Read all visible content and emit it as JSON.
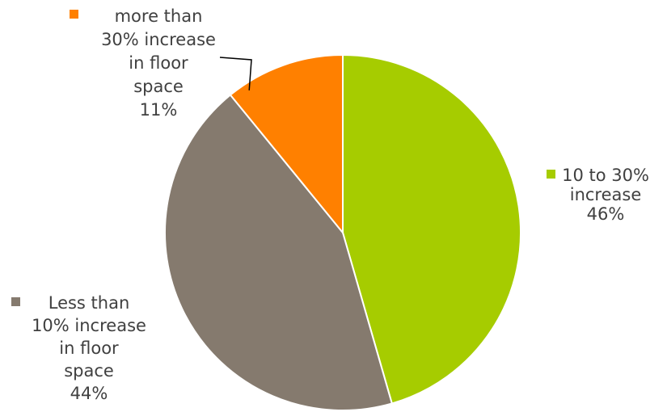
{
  "chart_data": {
    "type": "pie",
    "title": "",
    "slices": [
      {
        "name": "10 to 30% increase",
        "value": 46,
        "value_label": "46%",
        "color": "#a6cc00",
        "label_lines": [
          "10 to 30%",
          "increase",
          "46%"
        ]
      },
      {
        "name": "Less than 10% increase in floor space",
        "value": 44,
        "value_label": "44%",
        "color": "#857a6e",
        "label_lines": [
          "Less than",
          "10% increase",
          "in floor",
          "space",
          "44%"
        ]
      },
      {
        "name": "more than 30% increase in floor space",
        "value": 11,
        "value_label": "11%",
        "color": "#ff8000",
        "label_lines": [
          "more than",
          "30% increase",
          "in floor",
          "space",
          "11%"
        ]
      }
    ],
    "start_angle": "12 o'clock",
    "direction": "clockwise",
    "slice_border_color": "#ffffff",
    "leader_line_color": "#000000",
    "label_text_color": "#404040"
  }
}
